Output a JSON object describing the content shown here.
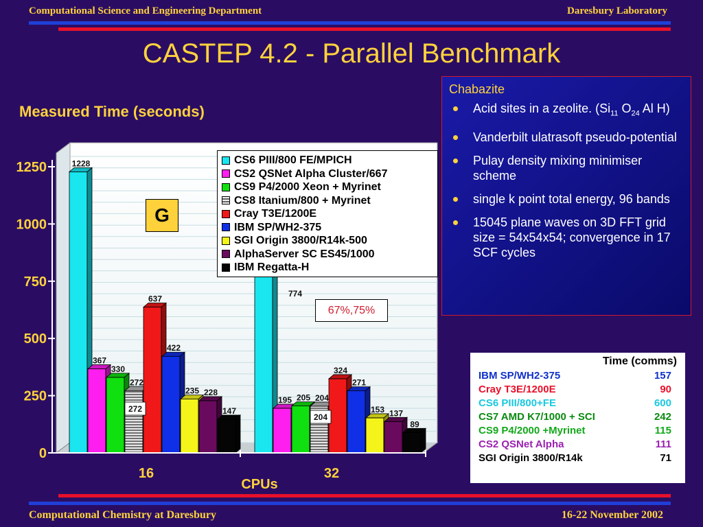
{
  "header": {
    "left": "Computational Science and Engineering Department",
    "right": "Daresbury Laboratory"
  },
  "footer": {
    "left": "Computational Chemistry at Daresbury",
    "right": "16-22 November 2002"
  },
  "slide_title": "CASTEP 4.2  - Parallel Benchmark",
  "y_title": "Measured Time (seconds)",
  "x_title": "CPUs",
  "badge_letter": "G",
  "efficiency_label": "67%,75%",
  "colors": {
    "accent": "#ffd23c",
    "background": "#2a0d63",
    "info_bg": "#1a1aa8"
  },
  "info": {
    "heading": "Chabazite",
    "bullet1": {
      "pre": "Acid sites in a zeolite. (Si",
      "sub1": "11",
      "mid": " O",
      "sub2": "24",
      "post": " Al H)"
    },
    "bullets": [
      "Vanderbilt ulatrasoft pseudo-potential",
      "Pulay density mixing minimiser scheme",
      "single k point total energy, 96 bands",
      "15045 plane waves on 3D FFT grid size = 54x54x54; convergence in 17 SCF cycles"
    ]
  },
  "comms_table": {
    "heading": "Time (comms)",
    "rows": [
      {
        "label": "IBM SP/WH2-375",
        "value": "157",
        "color": "#1030c8"
      },
      {
        "label": "Cray T3E/1200E",
        "value": "90",
        "color": "#e8102a"
      },
      {
        "label": "CS6 PIII/800+FE",
        "value": "600",
        "color": "#19c8e0"
      },
      {
        "label": "CS7 AMD K7/1000 + SCI",
        "value": "242",
        "color": "#0a8a10"
      },
      {
        "label": "CS9 P4/2000 +Myrinet",
        "value": "115",
        "color": "#12a81a"
      },
      {
        "label": "CS2 QSNet Alpha",
        "value": "111",
        "color": "#9a20b0"
      },
      {
        "label": "SGI Origin 3800/R14k",
        "value": "71",
        "color": "#000000"
      }
    ]
  },
  "chart_data": {
    "type": "bar",
    "categories": [
      "16",
      "32"
    ],
    "ylim": [
      0,
      1250
    ],
    "yticks": [
      "0",
      "250",
      "500",
      "750",
      "1000",
      "1250"
    ],
    "legend_position": "top-right",
    "series": [
      {
        "name": "CS6 PIII/800 FE/MPICH",
        "color": "#19e6ef",
        "values": [
          1228,
          null
        ],
        "labels": [
          "1228",
          ""
        ]
      },
      {
        "name": "CS2 QSNet Alpha Cluster/667",
        "color": "#ff1ef0",
        "values": [
          367,
          195
        ],
        "labels": [
          "367",
          "195"
        ]
      },
      {
        "name": "CS9 P4/2000 Xeon + Myrinet",
        "color": "#10e010",
        "values": [
          330,
          205
        ],
        "labels": [
          "330",
          "205"
        ]
      },
      {
        "name": "CS8 Itanium/800 + Myrinet",
        "color": "#b8b8b8",
        "values": [
          272,
          204
        ],
        "labels": [
          "272",
          "204"
        ],
        "striped": true
      },
      {
        "name": "Cray T3E/1200E",
        "color": "#f01818",
        "values": [
          637,
          324
        ],
        "labels": [
          "637",
          "324"
        ]
      },
      {
        "name": "IBM SP/WH2-375",
        "color": "#1030e8",
        "values": [
          422,
          271
        ],
        "labels": [
          "422",
          "271"
        ]
      },
      {
        "name": "SGI Origin 3800/R14k-500",
        "color": "#f4f41a",
        "values": [
          235,
          153
        ],
        "labels": [
          "235",
          "153"
        ]
      },
      {
        "name": "AlphaServer SC ES45/1000",
        "color": "#6a0a5e",
        "values": [
          228,
          137
        ],
        "labels": [
          "228",
          "137"
        ]
      },
      {
        "name": "IBM Regatta-H",
        "color": "#050505",
        "values": [
          147,
          89
        ],
        "labels": [
          "147",
          "89"
        ]
      }
    ],
    "partial_label": "774"
  }
}
